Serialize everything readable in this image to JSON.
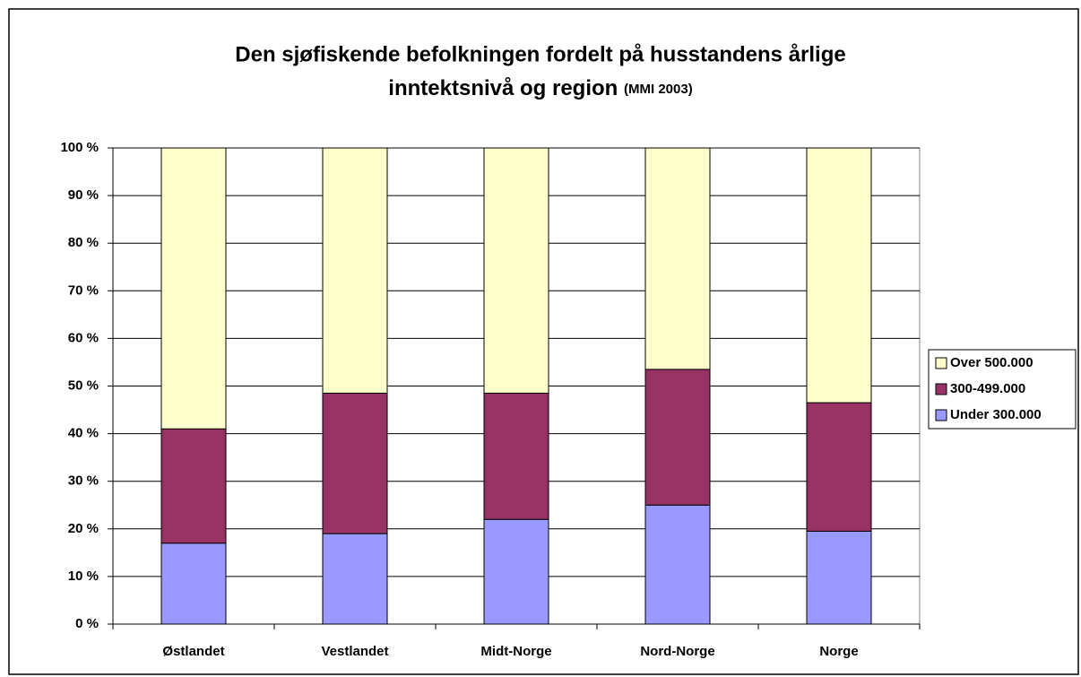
{
  "chart_data": {
    "type": "stacked_bar",
    "title": [
      "Den sjøfiskende befolkningen fordelt på husstandens årlige",
      "inntektsnivå og region"
    ],
    "source": "(MMI 2003)",
    "categories": [
      "Østlandet",
      "Vestlandet",
      "Midt-Norge",
      "Nord-Norge",
      "Norge"
    ],
    "series": [
      {
        "name": "Under 300.000",
        "color": "#9999ff",
        "values": [
          17,
          19,
          22,
          25,
          19.5
        ]
      },
      {
        "name": "300-499.000",
        "color": "#993366",
        "values": [
          24,
          29.5,
          26.5,
          28.5,
          27
        ]
      },
      {
        "name": "Over 500.000",
        "color": "#ffffcc",
        "values": [
          59,
          51.5,
          51.5,
          46.5,
          53.5
        ]
      }
    ],
    "ylim": [
      0,
      100
    ],
    "yticks": [
      {
        "value": 0,
        "label": "0 %"
      },
      {
        "value": 10,
        "label": "10 %"
      },
      {
        "value": 20,
        "label": "20 %"
      },
      {
        "value": 30,
        "label": "30 %"
      },
      {
        "value": 40,
        "label": "40 %"
      },
      {
        "value": 50,
        "label": "50 %"
      },
      {
        "value": 60,
        "label": "60 %"
      },
      {
        "value": 70,
        "label": "70 %"
      },
      {
        "value": 80,
        "label": "80 %"
      },
      {
        "value": 90,
        "label": "90 %"
      },
      {
        "value": 100,
        "label": "100 %"
      }
    ],
    "grid": true,
    "legend": "right"
  }
}
